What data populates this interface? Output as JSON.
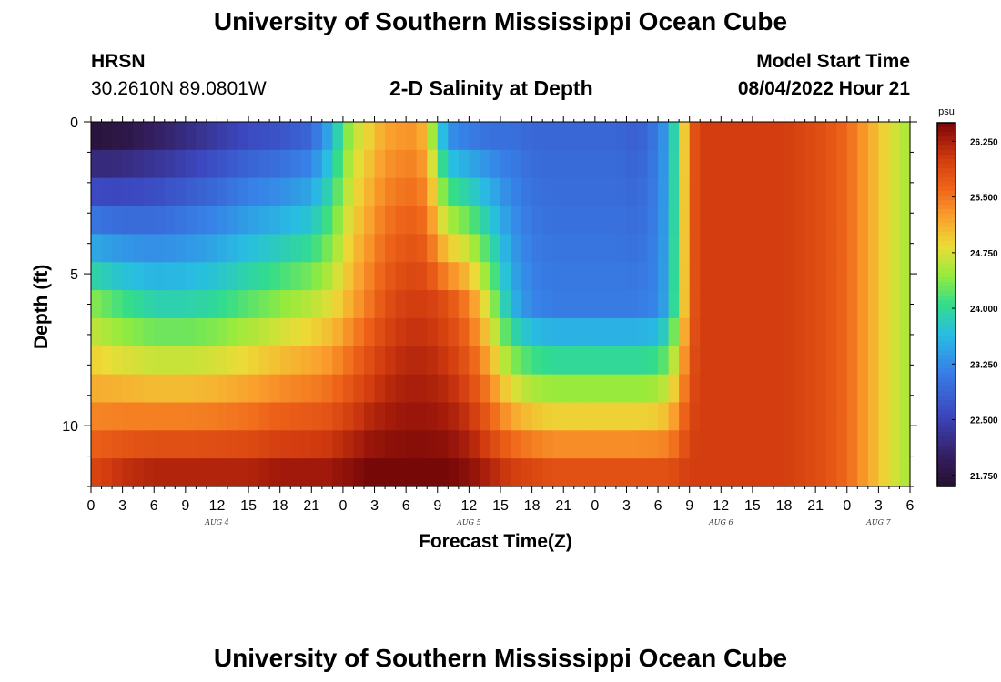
{
  "header": {
    "title": "University of Southern Mississippi Ocean Cube",
    "station": "HRSN",
    "coords": "30.2610N  89.0801W",
    "subtitle": "2-D Salinity at Depth",
    "start_label": "Model Start Time",
    "start_value": "08/04/2022 Hour 21"
  },
  "footer": {
    "title": "University of Southern Mississippi Ocean Cube"
  },
  "chart_data": {
    "type": "heatmap",
    "title": "2-D Salinity at Depth",
    "xlabel": "Forecast Time(Z)",
    "ylabel": "Depth (ft)",
    "x_range_hours_since_aug4_00z": [
      0,
      78
    ],
    "hour_tick_labels": [
      "0",
      "3",
      "6",
      "9",
      "12",
      "15",
      "18",
      "21",
      "0",
      "3",
      "6",
      "9",
      "12",
      "15",
      "18",
      "21",
      "0",
      "3",
      "6",
      "9",
      "12",
      "15",
      "18",
      "21",
      "0",
      "3",
      "6"
    ],
    "day_labels": [
      {
        "label": "AUG 4",
        "hour": 12
      },
      {
        "label": "AUG 5",
        "hour": 36
      },
      {
        "label": "AUG 6",
        "hour": 60
      },
      {
        "label": "AUG 7",
        "hour": 75
      }
    ],
    "y_range_ft": [
      0,
      12
    ],
    "y_tick_labels": [
      "0",
      "5",
      "10"
    ],
    "depth_levels_ft": [
      0,
      1,
      2,
      3,
      4,
      5,
      6,
      7,
      8,
      9,
      10,
      11,
      12
    ],
    "colorbar": {
      "unit": "psu",
      "min": 21.6,
      "max": 26.5,
      "tick_labels": [
        "26.250",
        "25.500",
        "24.750",
        "24.000",
        "23.250",
        "22.500",
        "21.750"
      ]
    },
    "salinity_anchors_psu": {
      "hours": [
        0,
        3,
        6,
        9,
        12,
        15,
        18,
        21,
        23,
        24,
        25,
        26,
        27,
        28,
        30,
        31,
        32,
        33,
        34,
        36,
        38,
        40,
        42,
        44,
        46,
        48,
        50,
        52,
        54,
        55,
        56,
        57,
        58,
        60,
        63,
        66,
        70,
        72,
        74,
        76,
        78
      ],
      "depth_0": [
        21.7,
        21.8,
        22.0,
        22.2,
        22.4,
        22.6,
        22.7,
        22.9,
        23.6,
        24.2,
        24.6,
        24.8,
        25.0,
        25.2,
        25.3,
        25.3,
        25.0,
        24.0,
        23.3,
        23.1,
        23.0,
        23.0,
        22.9,
        22.9,
        22.9,
        22.9,
        22.9,
        22.8,
        23.1,
        23.5,
        24.3,
        25.6,
        26.0,
        26.0,
        26.0,
        26.0,
        25.8,
        25.6,
        25.2,
        24.8,
        24.5
      ],
      "depth_6": [
        24.4,
        24.1,
        23.9,
        23.9,
        24.0,
        24.2,
        24.4,
        24.6,
        24.8,
        25.0,
        25.2,
        25.4,
        25.6,
        25.8,
        26.0,
        26.0,
        26.0,
        25.9,
        25.8,
        25.4,
        24.6,
        23.6,
        23.2,
        23.1,
        23.1,
        23.1,
        23.1,
        23.1,
        23.2,
        23.6,
        24.4,
        25.6,
        26.0,
        26.0,
        26.0,
        26.0,
        25.8,
        25.6,
        25.2,
        24.8,
        24.5
      ],
      "depth_12": [
        25.9,
        26.1,
        26.2,
        26.2,
        26.2,
        26.2,
        26.3,
        26.3,
        26.3,
        26.4,
        26.4,
        26.5,
        26.5,
        26.5,
        26.5,
        26.5,
        26.5,
        26.5,
        26.5,
        26.4,
        26.2,
        26.0,
        25.9,
        25.8,
        25.8,
        25.8,
        25.8,
        25.8,
        25.8,
        25.8,
        25.9,
        26.0,
        26.0,
        26.0,
        26.0,
        26.0,
        25.8,
        25.6,
        25.2,
        24.8,
        24.5
      ]
    }
  }
}
